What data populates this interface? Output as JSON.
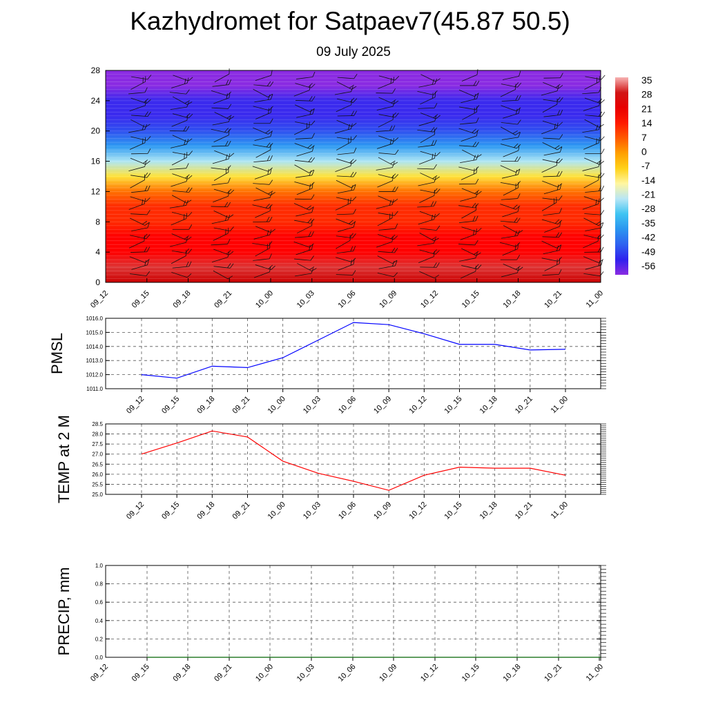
{
  "header": {
    "title": "Kazhydromet for Satpaev7(45.87 50.5)",
    "date": "09 July 2025"
  },
  "time_labels": [
    "09_12",
    "09_15",
    "09_18",
    "09_21",
    "10_00",
    "10_03",
    "10_06",
    "10_09",
    "10_12",
    "10_15",
    "10_18",
    "10_21",
    "11_00"
  ],
  "colors": {
    "pmsl_line": "#0000ff",
    "temp_line": "#ff0000",
    "precip_line": "#006400"
  },
  "chart_data": [
    {
      "type": "heatmap",
      "title": "",
      "ylim": [
        0,
        28
      ],
      "yticks": [
        0,
        4,
        8,
        12,
        16,
        20,
        24,
        28
      ],
      "colorbar_labels": [
        "35",
        "28",
        "21",
        "14",
        "7",
        "0",
        "-7",
        "-14",
        "-21",
        "-28",
        "-35",
        "-42",
        "-49",
        "-56"
      ],
      "temperature_by_level": {
        "levels": [
          0,
          2,
          4,
          6,
          8,
          10,
          12,
          14,
          16,
          18,
          20,
          22,
          24,
          26,
          28
        ],
        "values": [
          28,
          31,
          26,
          23,
          20,
          15,
          8,
          0,
          -14,
          -28,
          -42,
          -52,
          -56,
          -59,
          -61
        ]
      },
      "wind_barbs": true
    },
    {
      "type": "line",
      "ylabel": "PMSL",
      "ylim": [
        1011,
        1016
      ],
      "yticks": [
        "1011.0",
        "1012.0",
        "1013.0",
        "1014.0",
        "1015.0",
        "1016.0"
      ],
      "series": [
        {
          "values": [
            1012.0,
            1011.75,
            1012.6,
            1012.5,
            1013.2,
            1014.45,
            1015.7,
            1015.55,
            1014.9,
            1014.15,
            1014.15,
            1013.75,
            1013.8
          ]
        }
      ]
    },
    {
      "type": "line",
      "ylabel": "TEMP at 2 M",
      "ylim": [
        25.0,
        28.5
      ],
      "yticks": [
        "25.0",
        "25.5",
        "26.0",
        "26.5",
        "27.0",
        "27.5",
        "28.0",
        "28.5"
      ],
      "series": [
        {
          "values": [
            27.0,
            27.55,
            28.15,
            27.85,
            26.65,
            26.05,
            25.65,
            25.2,
            25.95,
            26.35,
            26.3,
            26.3,
            25.95
          ]
        }
      ]
    },
    {
      "type": "line",
      "ylabel": "PRECIP, mm",
      "ylim": [
        0.0,
        1.0
      ],
      "yticks": [
        "0.0",
        "0.2",
        "0.4",
        "0.6",
        "0.8",
        "1.0"
      ],
      "series": [
        {
          "values": [
            0,
            0,
            0,
            0,
            0,
            0,
            0,
            0,
            0,
            0,
            0,
            0,
            0
          ]
        }
      ]
    }
  ]
}
